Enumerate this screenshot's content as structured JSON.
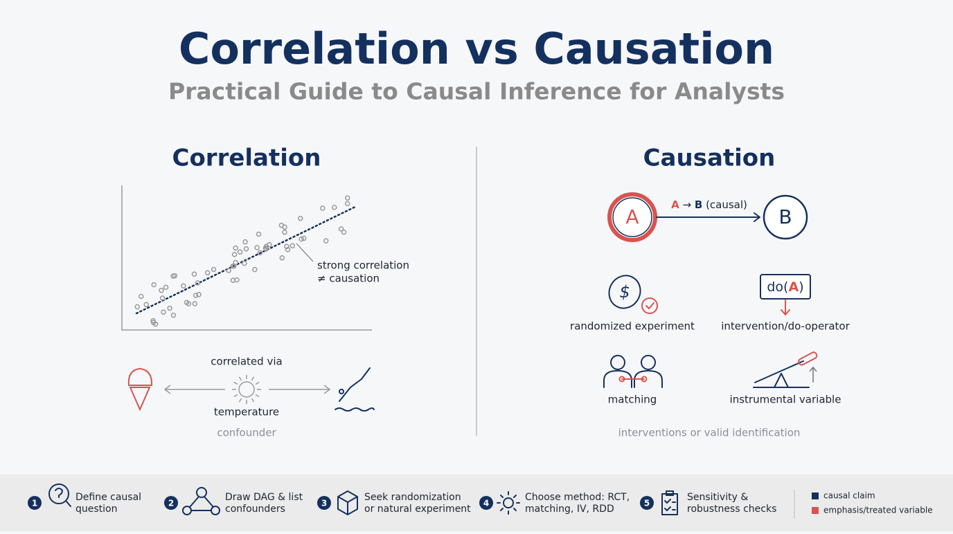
{
  "header": {
    "title": "Correlation vs Causation",
    "subtitle": "Practical Guide to Causal Inference for Analysts"
  },
  "correlation": {
    "heading": "Correlation",
    "annotation": [
      "strong correlation",
      "≠ causation"
    ],
    "confounder": {
      "top": "correlated via",
      "middle": "temperature",
      "caption": "confounder"
    }
  },
  "causation": {
    "heading": "Causation",
    "nodes": [
      "A",
      "B"
    ],
    "edge_label": {
      "from": "A",
      "arrow": "→",
      "to": "B",
      "note": "(causal)"
    },
    "do_icon": {
      "open": "do(",
      "variable": "A",
      "close": ")"
    },
    "methods": [
      "randomized experiment",
      "intervention/do-operator",
      "matching",
      "instrumental variable"
    ],
    "caption": "interventions or valid identification"
  },
  "steps": [
    {
      "number": "1",
      "lines": [
        "Define causal",
        "question"
      ]
    },
    {
      "number": "2",
      "lines": [
        "Draw DAG & list",
        "confounders"
      ]
    },
    {
      "number": "3",
      "lines": [
        "Seek randomization",
        "or natural experiment"
      ]
    },
    {
      "number": "4",
      "lines": [
        "Choose method: RCT,",
        "matching, IV, RDD"
      ]
    },
    {
      "number": "5",
      "lines": [
        "Sensitivity &",
        "robustness checks"
      ]
    }
  ],
  "legend": [
    {
      "label": "causal claim",
      "color": "#14305e"
    },
    {
      "label": "emphasis/treated variable",
      "color": "#d9534f"
    }
  ]
}
